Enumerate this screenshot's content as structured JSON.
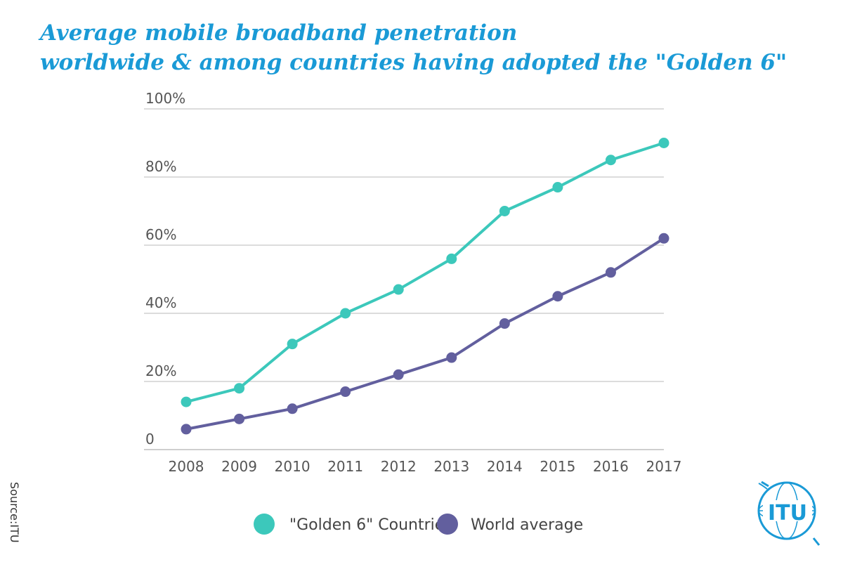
{
  "title": {
    "line1": "Average mobile broadband penetration",
    "line2": "worldwide & among  countries having adopted the \"Golden 6\""
  },
  "source": "Source:ITU",
  "logo_text": "ITU",
  "colors": {
    "title": "#1a9ad6",
    "golden6": "#3cc8bb",
    "world": "#625f9e",
    "grid": "#dcdcdc",
    "axis_text": "#555555"
  },
  "chart_data": {
    "type": "line",
    "x": [
      "2008",
      "2009",
      "2010",
      "2011",
      "2012",
      "2013",
      "2014",
      "2015",
      "2016",
      "2017"
    ],
    "ylim": [
      0,
      100
    ],
    "y_ticks": [
      {
        "value": 0,
        "label": "0"
      },
      {
        "value": 20,
        "label": "20%"
      },
      {
        "value": 40,
        "label": "40%"
      },
      {
        "value": 60,
        "label": "60%"
      },
      {
        "value": 80,
        "label": "80%"
      },
      {
        "value": 100,
        "label": "100%"
      }
    ],
    "grid": true,
    "legend": "bottom-center",
    "series": [
      {
        "name": "\"Golden 6\" Countries",
        "color": "#3cc8bb",
        "values": [
          14,
          18,
          31,
          40,
          47,
          56,
          70,
          77,
          85,
          90
        ]
      },
      {
        "name": "World average",
        "color": "#625f9e",
        "values": [
          6,
          9,
          12,
          17,
          22,
          27,
          37,
          45,
          52,
          62
        ]
      }
    ]
  }
}
